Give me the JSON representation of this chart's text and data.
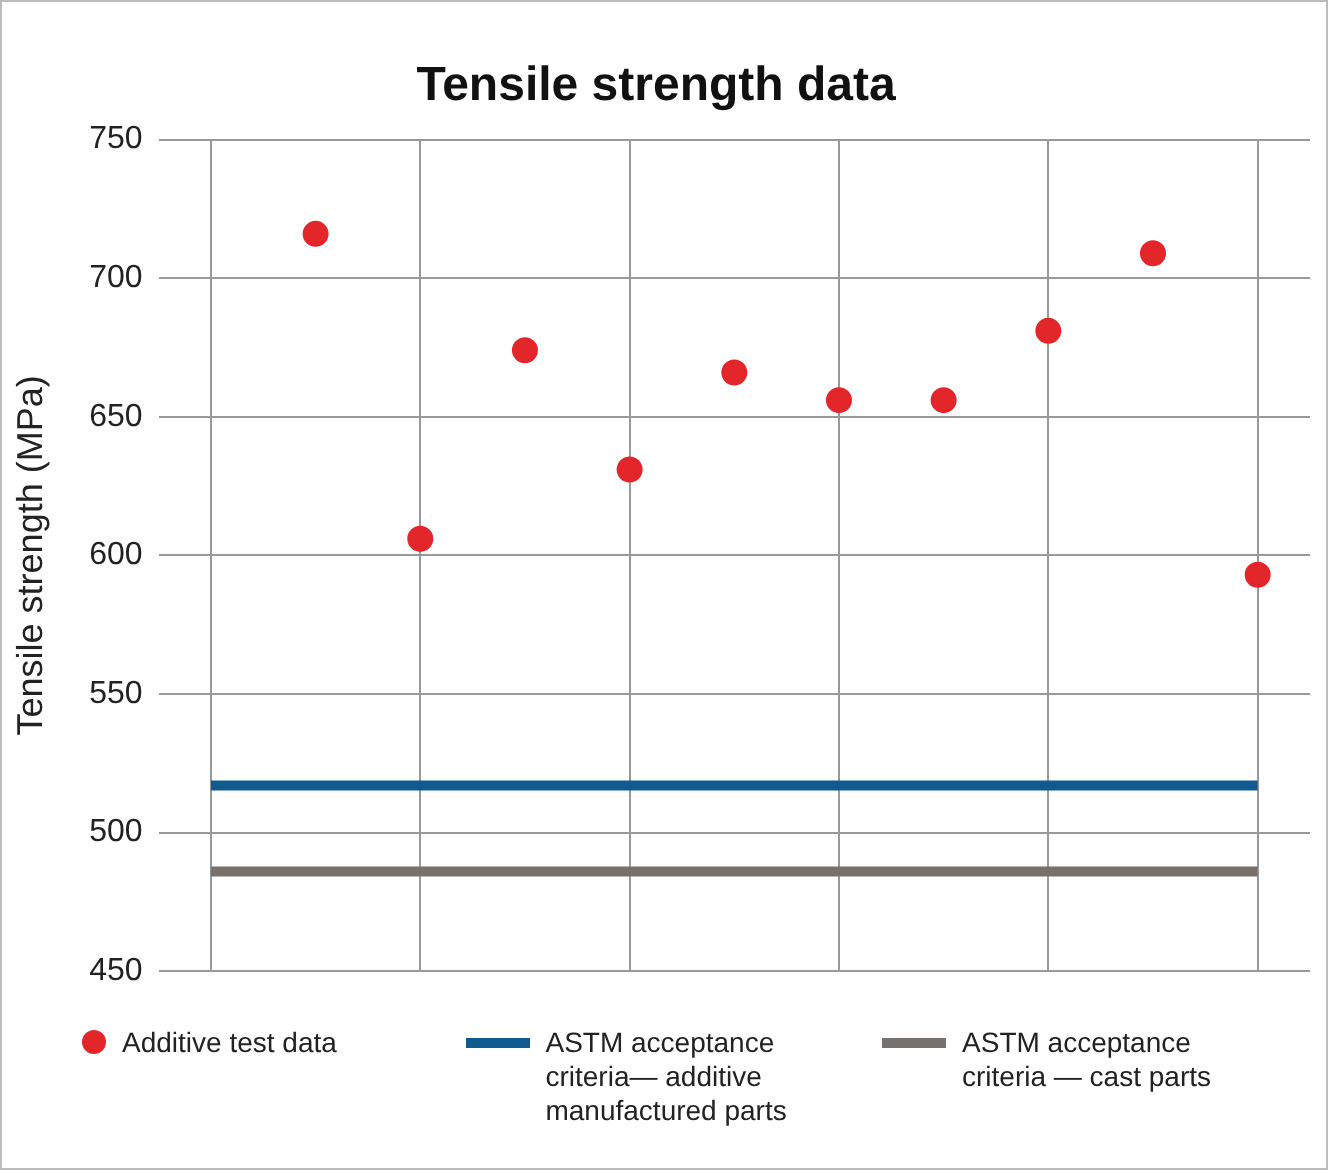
{
  "chart_data": {
    "type": "scatter",
    "title": "Tensile strength data",
    "ylabel": "Tensile strength (MPa)",
    "categories": [
      null,
      null,
      null,
      null,
      null,
      null,
      null,
      null,
      null,
      null,
      null
    ],
    "series": [
      {
        "name": "Additive test data",
        "color": "#e3262a",
        "values": [
          null,
          716,
          606,
          674,
          631,
          666,
          656,
          656,
          681,
          709,
          593
        ]
      }
    ],
    "ref_lines": [
      {
        "axis": "y",
        "value": 517,
        "label": "ASTM acceptance criteria— additive manufactured parts",
        "color": "#0f5a8e"
      },
      {
        "axis": "y",
        "value": 486,
        "label": "ASTM acceptance criteria — cast parts",
        "color": "#77716d"
      }
    ],
    "ylim": [
      450,
      750
    ],
    "yticks": [
      450,
      500,
      550,
      600,
      650,
      700,
      750
    ],
    "grid": true,
    "legend": "bottom",
    "marker": "circle"
  }
}
